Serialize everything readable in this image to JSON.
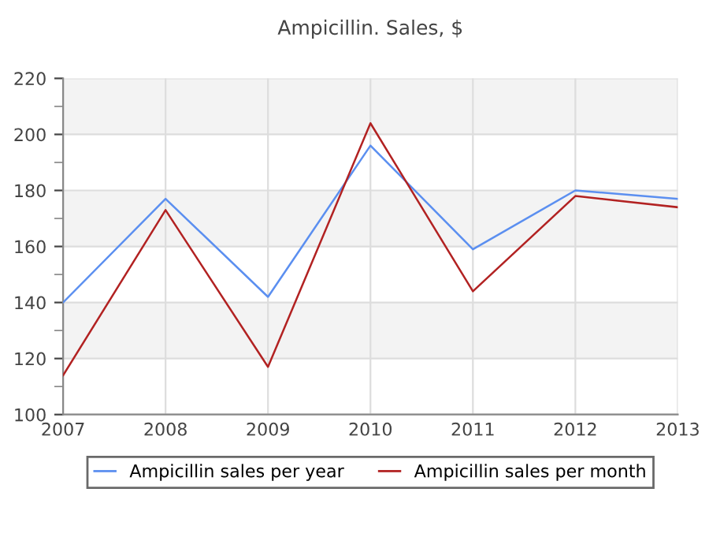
{
  "chart_data": {
    "type": "line",
    "title": "Ampicillin. Sales, $",
    "x": [
      2007,
      2008,
      2009,
      2010,
      2011,
      2012,
      2013
    ],
    "series": [
      {
        "name": "Ampicillin sales per year",
        "color": "#5b8ff0",
        "values": [
          140,
          177,
          142,
          196,
          159,
          180,
          177
        ]
      },
      {
        "name": "Ampicillin sales per month",
        "color": "#b22222",
        "values": [
          114,
          173,
          117,
          204,
          144,
          178,
          174
        ]
      }
    ],
    "xlim": [
      2007,
      2013
    ],
    "xticks": [
      2007,
      2008,
      2009,
      2010,
      2011,
      2012,
      2013
    ],
    "ylim": [
      100,
      220
    ],
    "yticks": [
      100,
      120,
      140,
      160,
      180,
      200,
      220
    ],
    "bands": [
      {
        "axis": "y",
        "from": 120,
        "to": 140,
        "color": "#f3f3f3"
      },
      {
        "axis": "y",
        "from": 160,
        "to": 180,
        "color": "#f3f3f3"
      },
      {
        "axis": "y",
        "from": 200,
        "to": 220,
        "color": "#f3f3f3"
      }
    ],
    "grid": true,
    "legend": "bottom",
    "marker": "none",
    "line_style": "solid"
  }
}
